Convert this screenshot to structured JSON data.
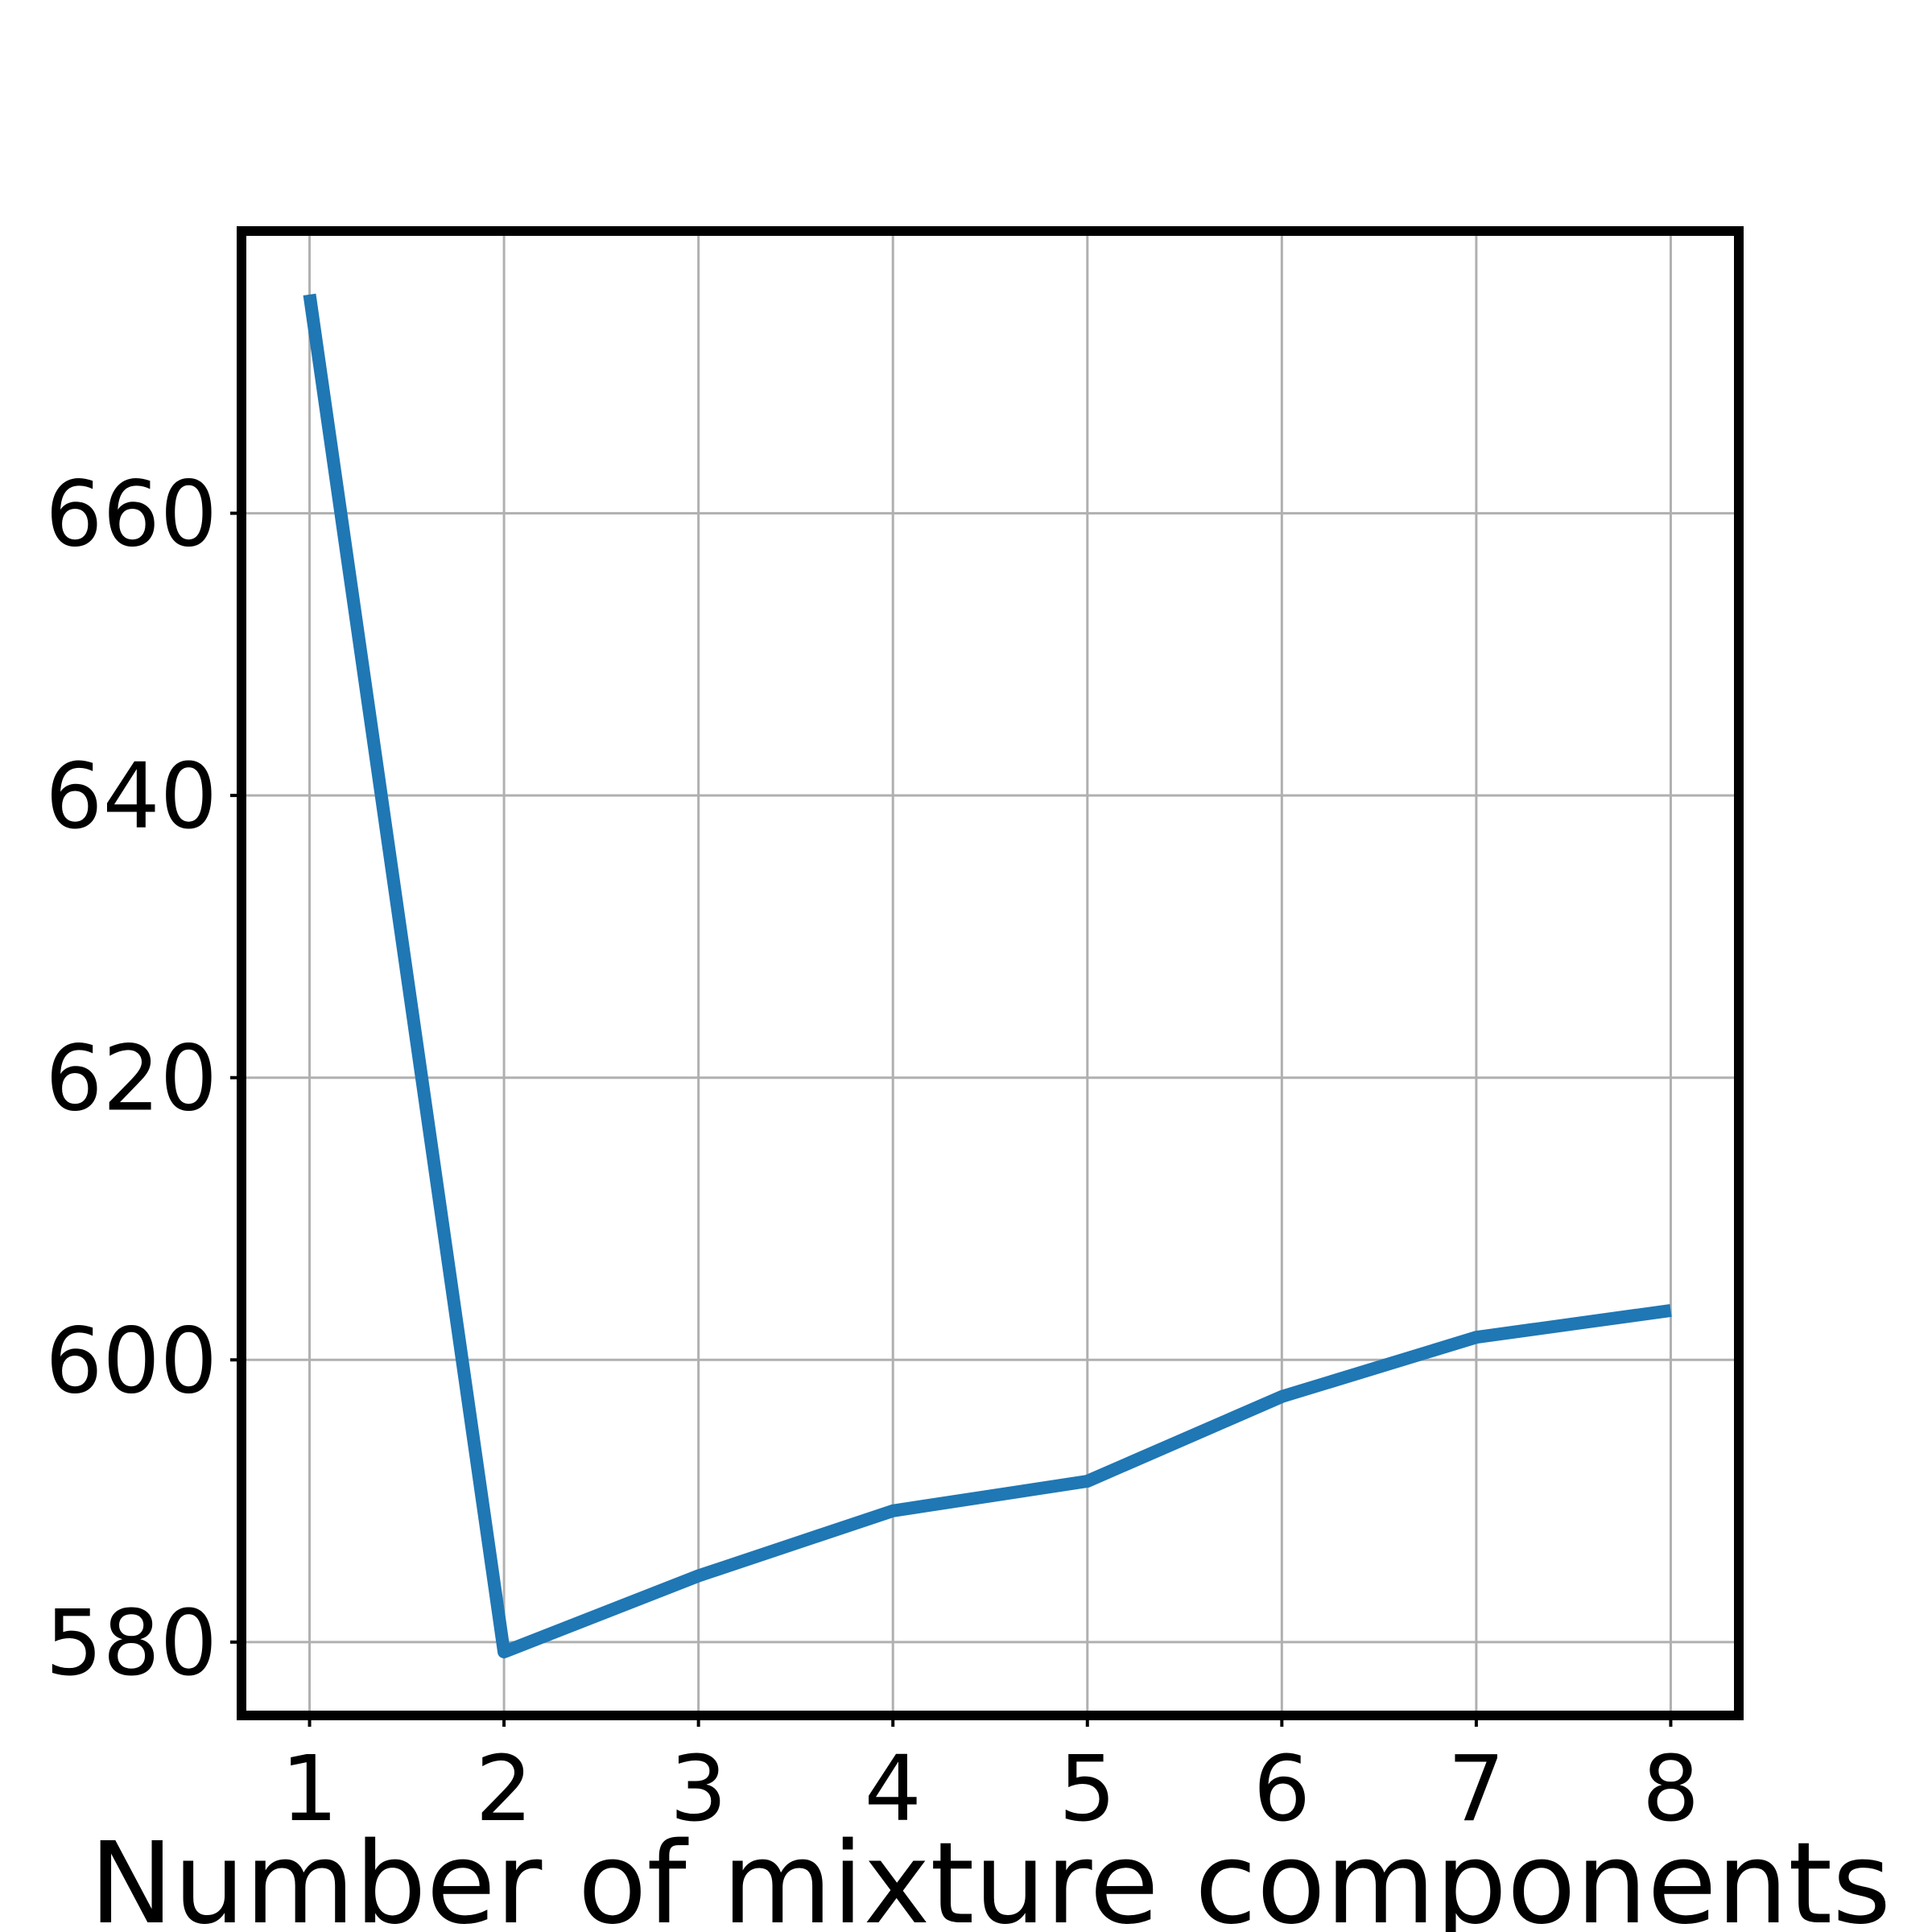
{
  "chart_data": {
    "type": "line",
    "title": "",
    "xlabel": "Number of mixture components",
    "ylabel": "",
    "x": [
      1,
      2,
      3,
      4,
      5,
      6,
      7,
      8
    ],
    "series": [
      {
        "values": [
          675.5,
          579.3,
          584.7,
          589.3,
          591.4,
          597.4,
          601.6,
          603.5
        ]
      }
    ],
    "xticks": [
      "1",
      "2",
      "3",
      "4",
      "5",
      "6",
      "7",
      "8"
    ],
    "yticks": [
      "580",
      "600",
      "620",
      "640",
      "660"
    ],
    "xlim": [
      0.65,
      8.35
    ],
    "ylim": [
      574.8,
      680.0
    ],
    "grid": true,
    "colors": {
      "line": "#1f77b4",
      "grid": "#b0b0b0",
      "frame": "#000000"
    }
  }
}
